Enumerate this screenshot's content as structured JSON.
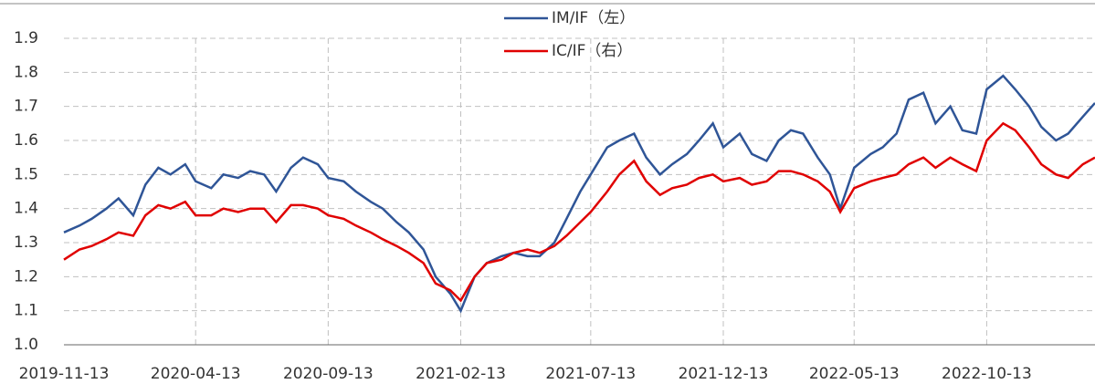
{
  "chart_data": {
    "type": "line",
    "x": [
      "2019-11-13",
      "2019-12-01",
      "2019-12-15",
      "2020-01-01",
      "2020-01-15",
      "2020-02-01",
      "2020-02-15",
      "2020-03-01",
      "2020-03-15",
      "2020-04-01",
      "2020-04-13",
      "2020-05-01",
      "2020-05-15",
      "2020-06-01",
      "2020-06-15",
      "2020-07-01",
      "2020-07-15",
      "2020-08-01",
      "2020-08-15",
      "2020-09-01",
      "2020-09-13",
      "2020-10-01",
      "2020-10-15",
      "2020-11-01",
      "2020-11-15",
      "2020-12-01",
      "2020-12-15",
      "2021-01-01",
      "2021-01-15",
      "2021-02-01",
      "2021-02-13",
      "2021-03-01",
      "2021-03-15",
      "2021-04-01",
      "2021-04-15",
      "2021-05-01",
      "2021-05-15",
      "2021-06-01",
      "2021-06-15",
      "2021-07-01",
      "2021-07-13",
      "2021-08-01",
      "2021-08-15",
      "2021-09-01",
      "2021-09-15",
      "2021-10-01",
      "2021-10-15",
      "2021-11-01",
      "2021-11-15",
      "2021-12-01",
      "2021-12-13",
      "2022-01-01",
      "2022-01-15",
      "2022-02-01",
      "2022-02-15",
      "2022-03-01",
      "2022-03-15",
      "2022-04-01",
      "2022-04-15",
      "2022-04-27",
      "2022-05-13",
      "2022-06-01",
      "2022-06-15",
      "2022-07-01",
      "2022-07-15",
      "2022-08-01",
      "2022-08-15",
      "2022-09-01",
      "2022-09-15",
      "2022-10-01",
      "2022-10-13",
      "2022-11-01",
      "2022-11-15",
      "2022-12-01",
      "2022-12-15",
      "2023-01-01",
      "2023-01-15",
      "2023-02-01",
      "2023-02-15"
    ],
    "series": [
      {
        "name": "IM/IF（左）",
        "color": "#2f5597",
        "values": [
          1.33,
          1.35,
          1.37,
          1.4,
          1.43,
          1.38,
          1.47,
          1.52,
          1.5,
          1.53,
          1.48,
          1.46,
          1.5,
          1.49,
          1.51,
          1.5,
          1.45,
          1.52,
          1.55,
          1.53,
          1.49,
          1.48,
          1.45,
          1.42,
          1.4,
          1.36,
          1.33,
          1.28,
          1.2,
          1.15,
          1.1,
          1.2,
          1.24,
          1.26,
          1.27,
          1.26,
          1.26,
          1.3,
          1.37,
          1.45,
          1.5,
          1.58,
          1.6,
          1.62,
          1.55,
          1.5,
          1.53,
          1.56,
          1.6,
          1.65,
          1.58,
          1.62,
          1.56,
          1.54,
          1.6,
          1.63,
          1.62,
          1.55,
          1.5,
          1.4,
          1.52,
          1.56,
          1.58,
          1.62,
          1.72,
          1.74,
          1.65,
          1.7,
          1.63,
          1.62,
          1.75,
          1.79,
          1.75,
          1.7,
          1.64,
          1.6,
          1.62,
          1.67,
          1.71
        ]
      },
      {
        "name": "IC/IF（右）",
        "color": "#e00000",
        "values": [
          1.25,
          1.28,
          1.29,
          1.31,
          1.33,
          1.32,
          1.38,
          1.41,
          1.4,
          1.42,
          1.38,
          1.38,
          1.4,
          1.39,
          1.4,
          1.4,
          1.36,
          1.41,
          1.41,
          1.4,
          1.38,
          1.37,
          1.35,
          1.33,
          1.31,
          1.29,
          1.27,
          1.24,
          1.18,
          1.16,
          1.13,
          1.2,
          1.24,
          1.25,
          1.27,
          1.28,
          1.27,
          1.29,
          1.32,
          1.36,
          1.39,
          1.45,
          1.5,
          1.54,
          1.48,
          1.44,
          1.46,
          1.47,
          1.49,
          1.5,
          1.48,
          1.49,
          1.47,
          1.48,
          1.51,
          1.51,
          1.5,
          1.48,
          1.45,
          1.39,
          1.46,
          1.48,
          1.49,
          1.5,
          1.53,
          1.55,
          1.52,
          1.55,
          1.53,
          1.51,
          1.6,
          1.65,
          1.63,
          1.58,
          1.53,
          1.5,
          1.49,
          1.53,
          1.55
        ]
      }
    ],
    "xlim": [
      "2019-11-13",
      "2023-02-15"
    ],
    "xticks": [
      "2019-11-13",
      "2020-04-13",
      "2020-09-13",
      "2021-02-13",
      "2021-07-13",
      "2021-12-13",
      "2022-05-13",
      "2022-10-13"
    ],
    "ylim": [
      1.0,
      1.9
    ],
    "yticks": [
      {
        "value": 1.0,
        "label": "1.0"
      },
      1.1,
      1.2,
      1.3,
      1.4,
      1.5,
      1.6,
      1.7,
      1.8,
      1.9
    ],
    "grid": true,
    "legend": "top"
  }
}
